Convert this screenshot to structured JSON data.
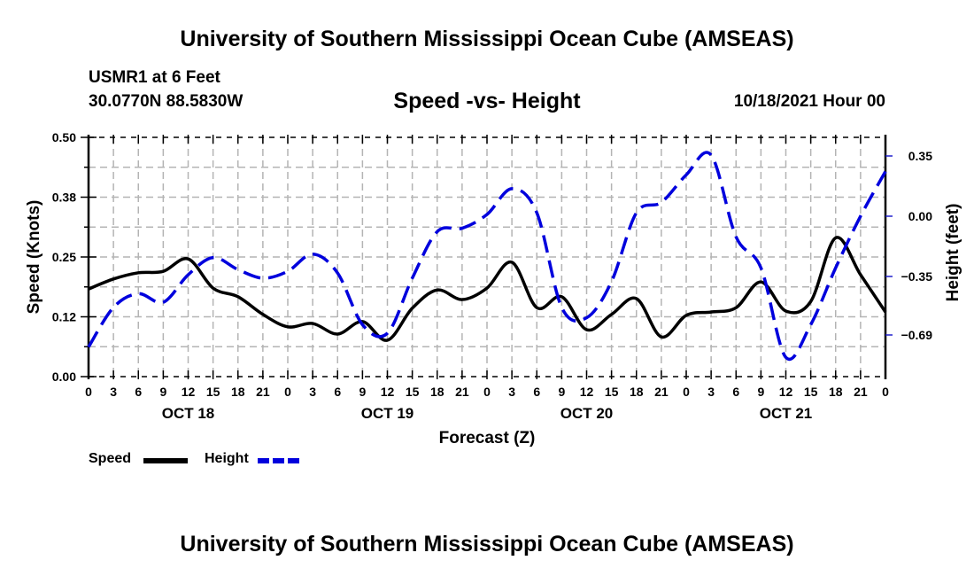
{
  "header": {
    "main_title": "University of Southern Mississippi Ocean Cube (AMSEAS)",
    "station": "USMR1 at 6 Feet",
    "coords": "30.0770N  88.5830W",
    "subtitle": "Speed -vs- Height",
    "datetime": "10/18/2021 Hour 00"
  },
  "footer": {
    "bottom_title": "University of Southern Mississippi Ocean Cube (AMSEAS)"
  },
  "legend": {
    "speed_label": "Speed",
    "height_label": "Height"
  },
  "chart_data": {
    "type": "line",
    "title": "Speed -vs- Height",
    "xlabel": "Forecast (Z)",
    "ylabel": "Speed (Knots)",
    "y2label": "Height (feet)",
    "grid": true,
    "legend_position": "bottom-left",
    "x_hours": [
      0,
      3,
      6,
      9,
      12,
      15,
      18,
      21,
      24,
      27,
      30,
      33,
      36,
      39,
      42,
      45,
      48,
      51,
      54,
      57,
      60,
      63,
      66,
      69,
      72,
      75,
      78,
      81,
      84,
      87,
      90,
      93,
      96
    ],
    "x_tick_labels": [
      "0",
      "3",
      "6",
      "9",
      "12",
      "15",
      "18",
      "21",
      "0",
      "3",
      "6",
      "9",
      "12",
      "15",
      "18",
      "21",
      "0",
      "3",
      "6",
      "9",
      "12",
      "15",
      "18",
      "21",
      "0",
      "3",
      "6",
      "9",
      "12",
      "15",
      "18",
      "21",
      "0"
    ],
    "day_labels": [
      {
        "label": "OCT 18",
        "hour": 12
      },
      {
        "label": "OCT 19",
        "hour": 36
      },
      {
        "label": "OCT 20",
        "hour": 60
      },
      {
        "label": "OCT 21",
        "hour": 84
      }
    ],
    "xlim": [
      0,
      96
    ],
    "ylim": [
      0.0,
      0.5
    ],
    "y_ticks": [
      0.0,
      0.125,
      0.25,
      0.375,
      0.5
    ],
    "y_tick_labels": [
      "0.00",
      "0.12",
      "0.25",
      "0.38",
      "0.50"
    ],
    "y2_ticks": [
      0.35,
      0.0,
      -0.35,
      -0.69
    ],
    "y2_tick_labels": [
      "0.35",
      "0.00",
      "−0.35",
      "−0.69"
    ],
    "y2_ref": {
      "top_value": 0.35,
      "bottom_value": -0.69
    },
    "series": [
      {
        "name": "Speed",
        "axis": "left",
        "color": "#000000",
        "style": "solid",
        "values": [
          0.183,
          0.204,
          0.217,
          0.22,
          0.246,
          0.185,
          0.167,
          0.13,
          0.104,
          0.111,
          0.089,
          0.115,
          0.076,
          0.143,
          0.181,
          0.161,
          0.185,
          0.239,
          0.144,
          0.167,
          0.098,
          0.13,
          0.163,
          0.083,
          0.128,
          0.135,
          0.144,
          0.198,
          0.137,
          0.157,
          0.29,
          0.213,
          0.135
        ]
      },
      {
        "name": "Height",
        "axis": "right",
        "color": "#0000dd",
        "style": "dashed",
        "values": [
          -0.76,
          -0.53,
          -0.45,
          -0.5,
          -0.34,
          -0.24,
          -0.31,
          -0.36,
          -0.32,
          -0.22,
          -0.33,
          -0.63,
          -0.68,
          -0.36,
          -0.09,
          -0.07,
          0.01,
          0.16,
          0.02,
          -0.53,
          -0.59,
          -0.38,
          0.02,
          0.08,
          0.24,
          0.355,
          -0.12,
          -0.3,
          -0.82,
          -0.63,
          -0.3,
          0.0,
          0.26
        ]
      }
    ]
  }
}
